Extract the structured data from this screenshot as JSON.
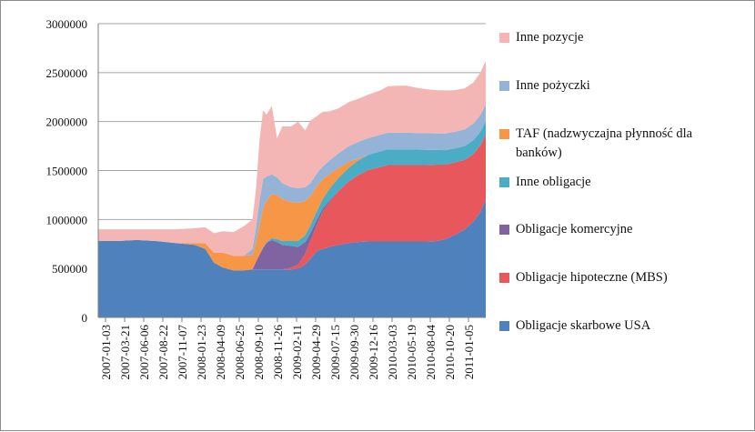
{
  "chart_data": {
    "type": "area",
    "stacked": true,
    "title": "",
    "xlabel": "",
    "ylabel": "",
    "ylim": [
      0,
      3000000
    ],
    "yticks": [
      "0",
      "500000",
      "1000000",
      "1500000",
      "2000000",
      "2500000",
      "3000000"
    ],
    "grid": "horizontal",
    "legend_position": "right",
    "x_tick_labels": [
      "2007-01-03",
      "2007-03-21",
      "2007-06-06",
      "2007-08-22",
      "2007-11-07",
      "2008-01-23",
      "2008-04-09",
      "2008-06-25",
      "2008-09-10",
      "2008-11-26",
      "2009-02-11",
      "2009-04-29",
      "2009-07-15",
      "2009-09-30",
      "2009-12-16",
      "2010-03-03",
      "2010-05-19",
      "2010-08-04",
      "2010-10-20",
      "2011-01-05"
    ],
    "x": [
      "2007-01-03",
      "2007-03-21",
      "2007-06-06",
      "2007-08-22",
      "2007-11-07",
      "2008-01-23",
      "2008-03-05",
      "2008-04-09",
      "2008-05-14",
      "2008-06-25",
      "2008-08-06",
      "2008-09-10",
      "2008-09-24",
      "2008-10-08",
      "2008-10-22",
      "2008-11-05",
      "2008-11-26",
      "2008-12-17",
      "2009-01-07",
      "2009-02-11",
      "2009-03-11",
      "2009-04-08",
      "2009-04-29",
      "2009-05-27",
      "2009-06-17",
      "2009-07-15",
      "2009-08-19",
      "2009-09-30",
      "2009-11-04",
      "2009-12-16",
      "2010-02-03",
      "2010-03-03",
      "2010-04-07",
      "2010-05-19",
      "2010-06-30",
      "2010-08-04",
      "2010-09-15",
      "2010-10-20",
      "2010-11-24",
      "2011-01-05",
      "2011-02-09",
      "2011-03-09",
      "2011-03-30"
    ],
    "series": [
      {
        "name": "Obligacje skarbowe USA",
        "color": "#4f81bd",
        "values": [
          780000,
          780000,
          790000,
          780000,
          760000,
          740000,
          700000,
          560000,
          510000,
          480000,
          480000,
          490000,
          490000,
          490000,
          490000,
          490000,
          490000,
          490000,
          490000,
          490000,
          500000,
          540000,
          600000,
          680000,
          700000,
          720000,
          740000,
          760000,
          770000,
          776000,
          776000,
          776000,
          776000,
          776000,
          776000,
          776000,
          780000,
          800000,
          840000,
          900000,
          980000,
          1080000,
          1200000
        ]
      },
      {
        "name": "Obligacje hipoteczne (MBS)",
        "color": "#e8575b",
        "values": [
          0,
          0,
          0,
          0,
          0,
          0,
          0,
          0,
          0,
          0,
          0,
          0,
          0,
          0,
          0,
          0,
          0,
          0,
          0,
          20000,
          40000,
          110000,
          180000,
          280000,
          380000,
          460000,
          550000,
          630000,
          680000,
          730000,
          760000,
          780000,
          780000,
          780000,
          780000,
          780000,
          780000,
          760000,
          740000,
          710000,
          690000,
          680000,
          670000
        ]
      },
      {
        "name": "Obligacje komercyjne",
        "color": "#8064a2",
        "values": [
          0,
          0,
          0,
          0,
          0,
          0,
          0,
          0,
          0,
          0,
          0,
          0,
          80000,
          150000,
          220000,
          270000,
          300000,
          280000,
          250000,
          220000,
          180000,
          120000,
          80000,
          50000,
          30000,
          15000,
          5000,
          0,
          0,
          0,
          0,
          0,
          0,
          0,
          0,
          0,
          0,
          0,
          0,
          0,
          0,
          0,
          0
        ]
      },
      {
        "name": "Inne obligacje",
        "color": "#4bacc6",
        "values": [
          0,
          0,
          0,
          0,
          0,
          0,
          0,
          0,
          0,
          0,
          0,
          0,
          0,
          0,
          5000,
          10000,
          20000,
          30000,
          40000,
          50000,
          60000,
          70000,
          80000,
          90000,
          100000,
          120000,
          130000,
          140000,
          150000,
          155000,
          160000,
          160000,
          160000,
          160000,
          158000,
          155000,
          150000,
          148000,
          145000,
          140000,
          140000,
          138000,
          135000
        ]
      },
      {
        "name": "TAF (nadzwyczajna płynność dla banków)",
        "color": "#f79646",
        "values": [
          0,
          0,
          0,
          0,
          0,
          20000,
          60000,
          100000,
          150000,
          150000,
          150000,
          150000,
          200000,
          300000,
          400000,
          420000,
          450000,
          450000,
          430000,
          400000,
          390000,
          350000,
          300000,
          250000,
          200000,
          150000,
          100000,
          60000,
          20000,
          0,
          0,
          0,
          0,
          0,
          0,
          0,
          0,
          0,
          0,
          0,
          0,
          0,
          0
        ]
      },
      {
        "name": "Inne pożyczki",
        "color": "#95b3d7",
        "values": [
          0,
          0,
          0,
          0,
          0,
          0,
          0,
          0,
          0,
          0,
          0,
          60000,
          150000,
          250000,
          300000,
          250000,
          200000,
          180000,
          160000,
          150000,
          150000,
          140000,
          130000,
          130000,
          130000,
          140000,
          150000,
          160000,
          170000,
          170000,
          170000,
          170000,
          170000,
          170000,
          170000,
          170000,
          170000,
          170000,
          170000,
          170000,
          170000,
          170000,
          170000
        ]
      },
      {
        "name": "Inne pozycje",
        "color": "#f4b6b4",
        "values": [
          120000,
          120000,
          110000,
          120000,
          140000,
          150000,
          160000,
          200000,
          220000,
          240000,
          300000,
          300000,
          400000,
          620000,
          700000,
          630000,
          700000,
          400000,
          580000,
          620000,
          680000,
          580000,
          640000,
          580000,
          560000,
          500000,
          460000,
          450000,
          440000,
          445000,
          454000,
          474000,
          480000,
          480000,
          460000,
          450000,
          440000,
          440000,
          425000,
          420000,
          420000,
          432000,
          445000
        ]
      }
    ]
  }
}
